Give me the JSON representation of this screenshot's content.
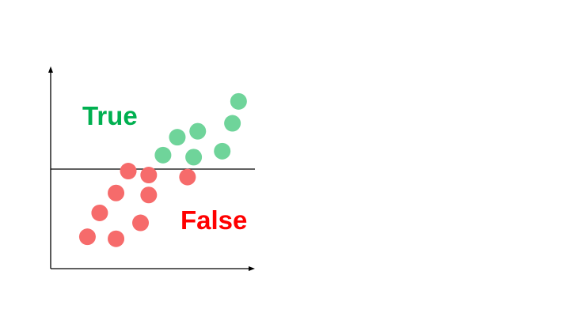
{
  "labels": {
    "true_label": "True",
    "false_label": "False"
  },
  "colors": {
    "true": "#00b050",
    "false": "#ff0000",
    "true_point": "#6fd49a",
    "false_point": "#f66b6b",
    "axis": "#000000"
  },
  "chart_data": {
    "type": "scatter",
    "title": "",
    "xlabel": "",
    "ylabel": "",
    "xlim": [
      0,
      10
    ],
    "ylim": [
      0,
      10
    ],
    "grid": false,
    "threshold_y": 5.0,
    "series": [
      {
        "class": "True",
        "points": [
          {
            "x": 9.2,
            "y": 8.4
          },
          {
            "x": 8.9,
            "y": 7.3
          },
          {
            "x": 7.2,
            "y": 6.9
          },
          {
            "x": 6.2,
            "y": 6.6
          },
          {
            "x": 8.4,
            "y": 5.9
          },
          {
            "x": 5.5,
            "y": 5.7
          },
          {
            "x": 7.0,
            "y": 5.6
          }
        ]
      },
      {
        "class": "False",
        "points": [
          {
            "x": 3.8,
            "y": 4.9
          },
          {
            "x": 4.8,
            "y": 4.7
          },
          {
            "x": 6.7,
            "y": 4.6
          },
          {
            "x": 3.2,
            "y": 3.8
          },
          {
            "x": 4.8,
            "y": 3.7
          },
          {
            "x": 2.4,
            "y": 2.8
          },
          {
            "x": 4.4,
            "y": 2.3
          },
          {
            "x": 1.8,
            "y": 1.6
          },
          {
            "x": 3.2,
            "y": 1.5
          }
        ]
      }
    ]
  }
}
